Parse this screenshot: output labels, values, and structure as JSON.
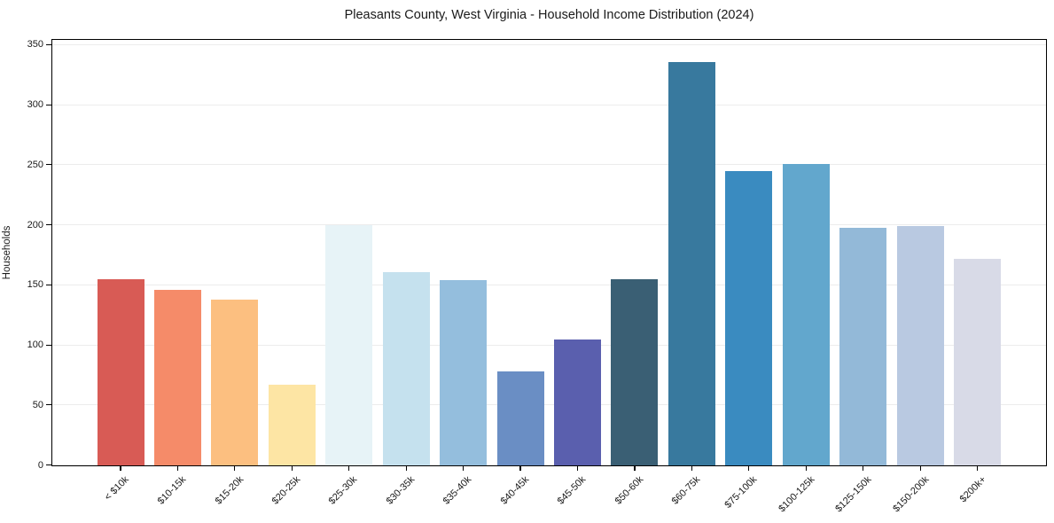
{
  "figure": {
    "background": "#ffffff"
  },
  "chart_data": {
    "type": "bar",
    "title": "Pleasants County, West Virginia - Household Income Distribution (2024)",
    "xlabel": "",
    "ylabel": "Households",
    "categories": [
      "< $10k",
      "$10-15k",
      "$15-20k",
      "$20-25k",
      "$25-30k",
      "$30-35k",
      "$35-40k",
      "$40-45k",
      "$45-50k",
      "$50-60k",
      "$60-75k",
      "$75-100k",
      "$100-125k",
      "$125-150k",
      "$150-200k",
      "$200k+"
    ],
    "values": [
      155,
      146,
      138,
      67,
      200,
      161,
      154,
      78,
      105,
      155,
      336,
      245,
      251,
      198,
      199,
      172
    ],
    "bar_colors": [
      "#d85b55",
      "#f58b69",
      "#fcbf80",
      "#fde5a4",
      "#e7f3f7",
      "#c5e1ee",
      "#94bedd",
      "#6a8ec4",
      "#5a5fae",
      "#3a5f74",
      "#38799e",
      "#3a8bc0",
      "#62a7cd",
      "#93b9d8",
      "#b9c9e1",
      "#d8dae7"
    ],
    "ylim": [
      0,
      354
    ],
    "yticks": [
      0,
      50,
      100,
      150,
      200,
      250,
      300,
      350
    ],
    "grid": "horizontal",
    "grid_color": "#ececec",
    "legend": "none",
    "text_color": "#1a1a1a",
    "spine_color": "#000000"
  }
}
